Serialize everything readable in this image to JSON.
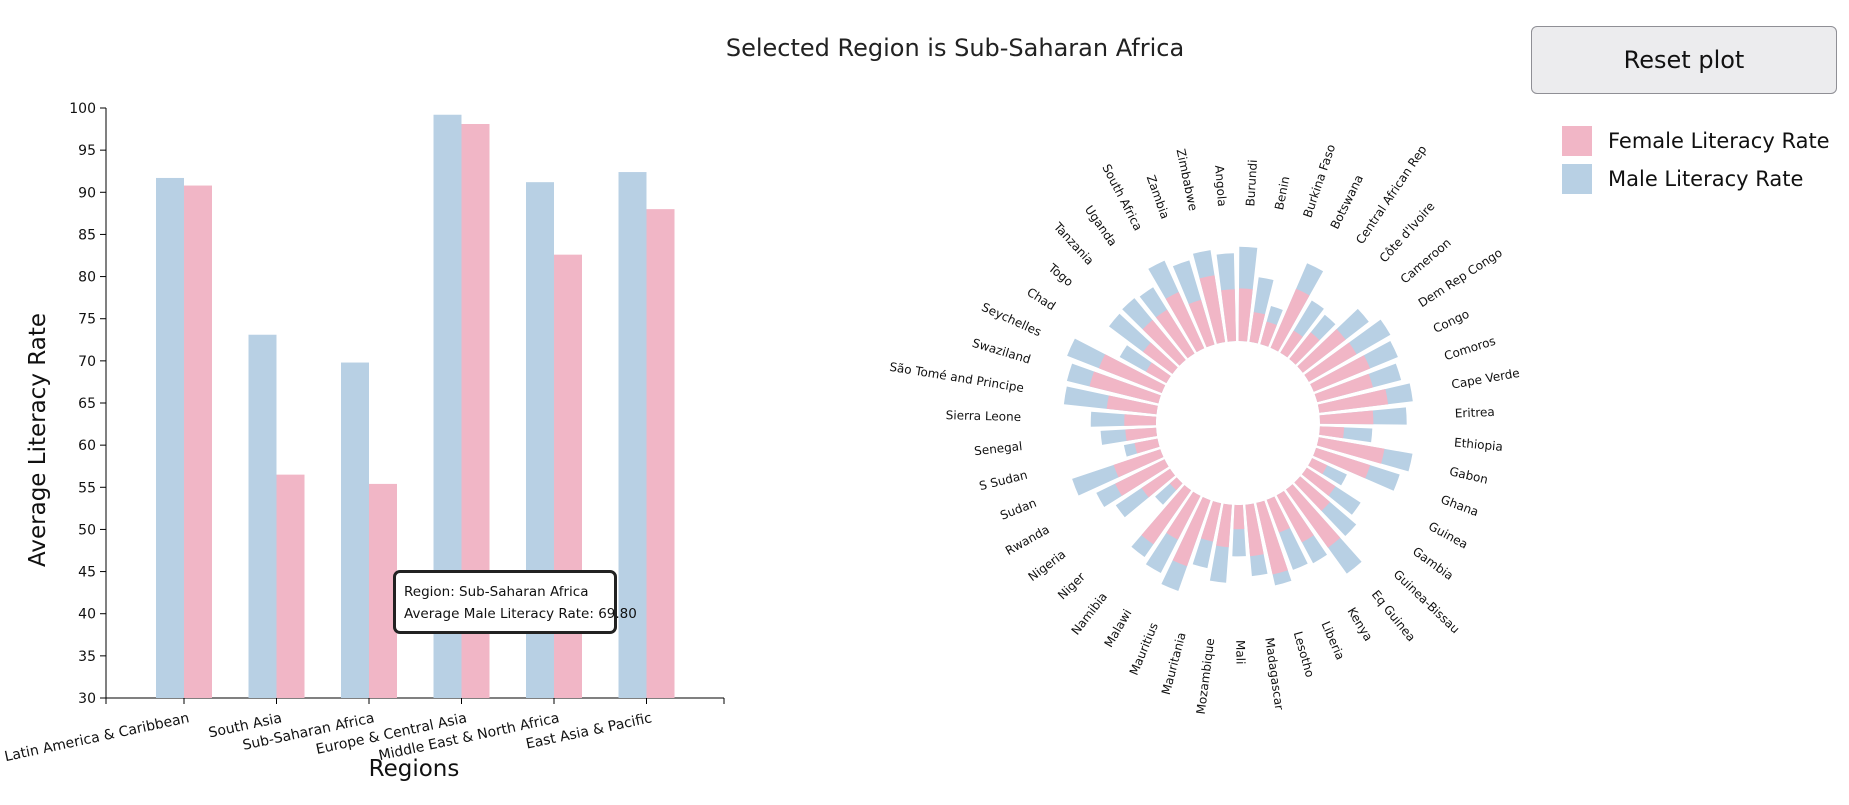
{
  "title": "Selected Region is Sub-Saharan Africa",
  "reset_button": "Reset plot",
  "legend": [
    {
      "label": "Female Literacy Rate",
      "color": "#f1b6c6"
    },
    {
      "label": "Male Literacy Rate",
      "color": "#b8d0e4"
    }
  ],
  "tooltip": {
    "region_line": "Region: Sub-Saharan Africa",
    "value_line": "Average Male Literacy Rate: 69.80"
  },
  "chart_data": [
    {
      "type": "bar",
      "xlabel": "Regions",
      "ylabel": "Average Literacy Rate",
      "ylim": [
        30,
        100
      ],
      "yticks": [
        30,
        35,
        40,
        45,
        50,
        55,
        60,
        65,
        70,
        75,
        80,
        85,
        90,
        95,
        100
      ],
      "categories": [
        "Latin America & Caribbean",
        "South Asia",
        "Sub-Saharan Africa",
        "Europe & Central Asia",
        "Middle East & North Africa",
        "East Asia & Pacific"
      ],
      "series": [
        {
          "name": "Male Literacy Rate",
          "color": "#b8d0e4",
          "values": [
            91.7,
            73.1,
            69.8,
            99.2,
            91.2,
            92.4
          ]
        },
        {
          "name": "Female Literacy Rate",
          "color": "#f1b6c6",
          "values": [
            90.8,
            56.5,
            55.4,
            98.1,
            82.6,
            88.0
          ]
        }
      ]
    },
    {
      "type": "radial-bar",
      "categories": [
        "Angola",
        "Burundi",
        "Benin",
        "Burkina Faso",
        "Botswana",
        "Central African Rep",
        "Côte d'Ivoire",
        "Cameroon",
        "Dem Rep Congo",
        "Congo",
        "Comoros",
        "Cape Verde",
        "Eritrea",
        "Ethiopia",
        "Gabon",
        "Ghana",
        "Guinea",
        "Gambia",
        "Guinea-Bissau",
        "Eq Guinea",
        "Kenya",
        "Liberia",
        "Lesotho",
        "Madagascar",
        "Mali",
        "Mozambique",
        "Mauritania",
        "Mauritius",
        "Malawi",
        "Namibia",
        "Niger",
        "Nigeria",
        "Rwanda",
        "Sudan",
        "S Sudan",
        "Senegal",
        "Sierra Leone",
        "São Tomé and Principe",
        "Swaziland",
        "Seychelles",
        "Chad",
        "Togo",
        "Tanzania",
        "Uganda",
        "South Africa",
        "Zambia",
        "Zimbabwe"
      ],
      "series": [
        {
          "name": "Male Literacy Rate",
          "color": "#b8d0e4",
          "values": [
            82,
            88,
            61,
            37,
            86,
            57,
            53,
            78,
            88,
            85,
            81,
            88,
            81,
            49,
            89,
            82,
            36,
            60,
            69,
            97,
            72,
            70,
            79,
            67,
            48,
            73,
            62,
            90,
            81,
            76,
            27,
            61,
            71,
            87,
            32,
            52,
            61,
            87,
            88,
            95,
            50,
            74,
            75,
            73,
            90,
            82,
            87
          ]
        },
        {
          "name": "Female Literacy Rate",
          "color": "#f1b6c6",
          "values": [
            62,
            63,
            36,
            28,
            77,
            31,
            41,
            65,
            66,
            73,
            69,
            83,
            64,
            29,
            80,
            68,
            20,
            41,
            47,
            86,
            64,
            42,
            88,
            62,
            29,
            51,
            47,
            84,
            59,
            79,
            11,
            41,
            66,
            59,
            28,
            37,
            38,
            60,
            85,
            81,
            28,
            44,
            62,
            62,
            74,
            56,
            81
          ]
        }
      ]
    }
  ]
}
